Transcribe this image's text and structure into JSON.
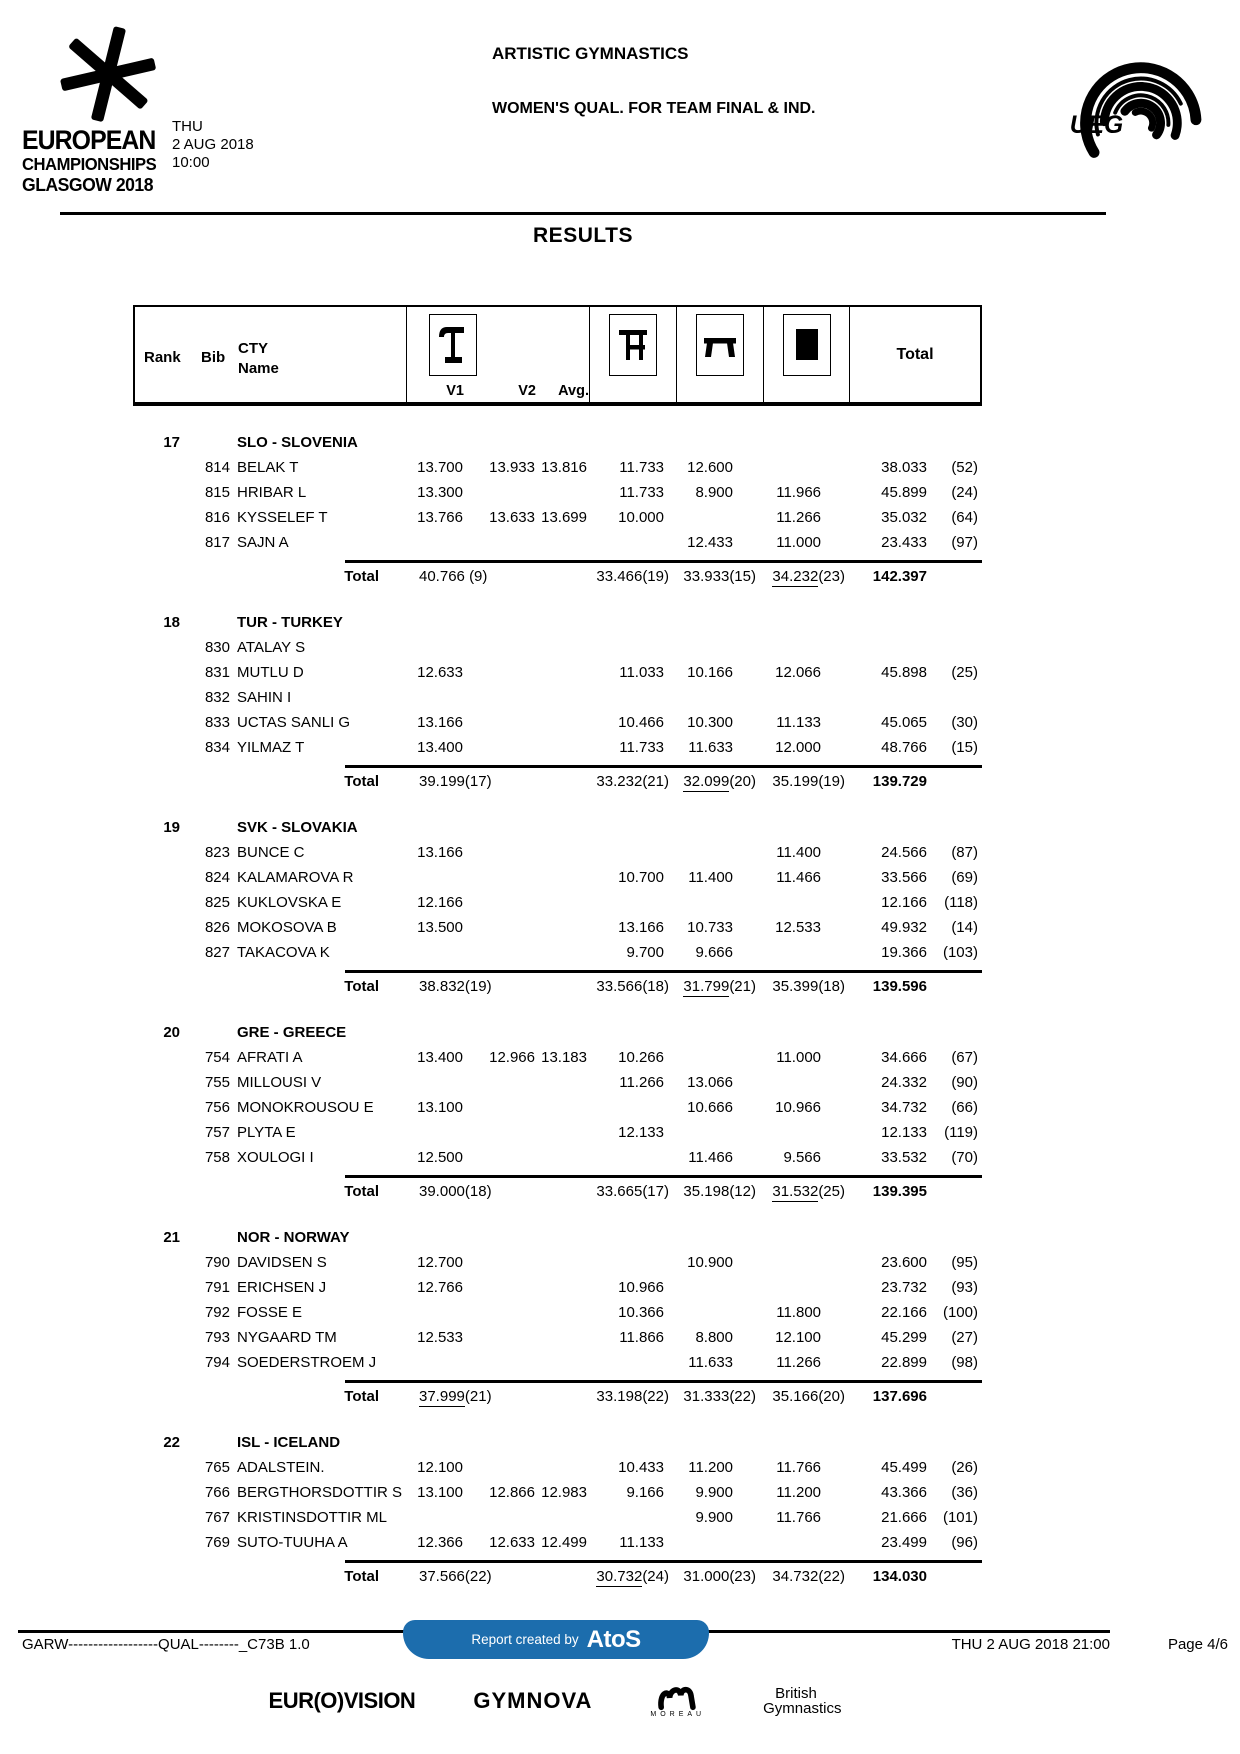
{
  "header": {
    "logo": {
      "line1": "EUROPEAN",
      "line2": "CHAMPIONSHIPS",
      "line3": "GLASGOW 2018"
    },
    "session": {
      "day": "THU",
      "date": "2 AUG 2018",
      "time": "10:00"
    },
    "title": "ARTISTIC GYMNASTICS",
    "subtitle": "WOMEN'S QUAL. FOR TEAM FINAL & IND.",
    "federation": "UEG",
    "results_title": "RESULTS"
  },
  "table": {
    "columns": {
      "rank": "Rank",
      "bib": "Bib",
      "cty": "CTY",
      "name": "Name",
      "v1": "V1",
      "v2": "V2",
      "avg": "Avg.",
      "total": "Total",
      "total_label": "Total"
    },
    "apparatus": [
      "vault",
      "uneven-bars",
      "balance-beam",
      "floor"
    ]
  },
  "teams": [
    {
      "rank": "17",
      "code": "SLO - SLOVENIA",
      "gymnasts": [
        {
          "bib": "814",
          "name": "BELAK T",
          "v1": "13.700",
          "v2": "13.933",
          "avg": "13.816",
          "ub": "11.733",
          "bb": "12.600",
          "fx": "",
          "total": "38.033",
          "rank": "(52)"
        },
        {
          "bib": "815",
          "name": "HRIBAR L",
          "v1": "13.300",
          "v2": "",
          "avg": "",
          "ub": "11.733",
          "bb": "8.900",
          "fx": "11.966",
          "total": "45.899",
          "rank": "(24)"
        },
        {
          "bib": "816",
          "name": "KYSSELEF T",
          "v1": "13.766",
          "v2": "13.633",
          "avg": "13.699",
          "ub": "10.000",
          "bb": "",
          "fx": "11.266",
          "total": "35.032",
          "rank": "(64)"
        },
        {
          "bib": "817",
          "name": "SAJN A",
          "v1": "",
          "v2": "",
          "avg": "",
          "ub": "",
          "bb": "12.433",
          "fx": "11.000",
          "total": "23.433",
          "rank": "(97)"
        }
      ],
      "totals": {
        "vault": {
          "score": "40.766",
          "rank": "(9)",
          "underline": false,
          "spaced": true
        },
        "ub": {
          "score": "33.466",
          "rank": "(19)",
          "underline": false,
          "spaced": false
        },
        "bb": {
          "score": "33.933",
          "rank": "(15)",
          "underline": false,
          "spaced": false
        },
        "fx": {
          "score": "34.232",
          "rank": "(23)",
          "underline": true,
          "spaced": false
        },
        "overall": "142.397"
      }
    },
    {
      "rank": "18",
      "code": "TUR - TURKEY",
      "gymnasts": [
        {
          "bib": "830",
          "name": "ATALAY S",
          "v1": "",
          "v2": "",
          "avg": "",
          "ub": "",
          "bb": "",
          "fx": "",
          "total": "",
          "rank": ""
        },
        {
          "bib": "831",
          "name": "MUTLU D",
          "v1": "12.633",
          "v2": "",
          "avg": "",
          "ub": "11.033",
          "bb": "10.166",
          "fx": "12.066",
          "total": "45.898",
          "rank": "(25)"
        },
        {
          "bib": "832",
          "name": "SAHIN I",
          "v1": "",
          "v2": "",
          "avg": "",
          "ub": "",
          "bb": "",
          "fx": "",
          "total": "",
          "rank": ""
        },
        {
          "bib": "833",
          "name": "UCTAS SANLI G",
          "v1": "13.166",
          "v2": "",
          "avg": "",
          "ub": "10.466",
          "bb": "10.300",
          "fx": "11.133",
          "total": "45.065",
          "rank": "(30)"
        },
        {
          "bib": "834",
          "name": "YILMAZ T",
          "v1": "13.400",
          "v2": "",
          "avg": "",
          "ub": "11.733",
          "bb": "11.633",
          "fx": "12.000",
          "total": "48.766",
          "rank": "(15)"
        }
      ],
      "totals": {
        "vault": {
          "score": "39.199",
          "rank": "(17)",
          "underline": false,
          "spaced": false
        },
        "ub": {
          "score": "33.232",
          "rank": "(21)",
          "underline": false,
          "spaced": false
        },
        "bb": {
          "score": "32.099",
          "rank": "(20)",
          "underline": true,
          "spaced": false
        },
        "fx": {
          "score": "35.199",
          "rank": "(19)",
          "underline": false,
          "spaced": false
        },
        "overall": "139.729"
      }
    },
    {
      "rank": "19",
      "code": "SVK - SLOVAKIA",
      "gymnasts": [
        {
          "bib": "823",
          "name": "BUNCE C",
          "v1": "13.166",
          "v2": "",
          "avg": "",
          "ub": "",
          "bb": "",
          "fx": "11.400",
          "total": "24.566",
          "rank": "(87)"
        },
        {
          "bib": "824",
          "name": "KALAMAROVA R",
          "v1": "",
          "v2": "",
          "avg": "",
          "ub": "10.700",
          "bb": "11.400",
          "fx": "11.466",
          "total": "33.566",
          "rank": "(69)"
        },
        {
          "bib": "825",
          "name": "KUKLOVSKA E",
          "v1": "12.166",
          "v2": "",
          "avg": "",
          "ub": "",
          "bb": "",
          "fx": "",
          "total": "12.166",
          "rank": "(118)"
        },
        {
          "bib": "826",
          "name": "MOKOSOVA B",
          "v1": "13.500",
          "v2": "",
          "avg": "",
          "ub": "13.166",
          "bb": "10.733",
          "fx": "12.533",
          "total": "49.932",
          "rank": "(14)"
        },
        {
          "bib": "827",
          "name": "TAKACOVA K",
          "v1": "",
          "v2": "",
          "avg": "",
          "ub": "9.700",
          "bb": "9.666",
          "fx": "",
          "total": "19.366",
          "rank": "(103)"
        }
      ],
      "totals": {
        "vault": {
          "score": "38.832",
          "rank": "(19)",
          "underline": false,
          "spaced": false
        },
        "ub": {
          "score": "33.566",
          "rank": "(18)",
          "underline": false,
          "spaced": false
        },
        "bb": {
          "score": "31.799",
          "rank": "(21)",
          "underline": true,
          "spaced": false
        },
        "fx": {
          "score": "35.399",
          "rank": "(18)",
          "underline": false,
          "spaced": false
        },
        "overall": "139.596"
      }
    },
    {
      "rank": "20",
      "code": "GRE - GREECE",
      "gymnasts": [
        {
          "bib": "754",
          "name": "AFRATI A",
          "v1": "13.400",
          "v2": "12.966",
          "avg": "13.183",
          "ub": "10.266",
          "bb": "",
          "fx": "11.000",
          "total": "34.666",
          "rank": "(67)"
        },
        {
          "bib": "755",
          "name": "MILLOUSI V",
          "v1": "",
          "v2": "",
          "avg": "",
          "ub": "11.266",
          "bb": "13.066",
          "fx": "",
          "total": "24.332",
          "rank": "(90)"
        },
        {
          "bib": "756",
          "name": "MONOKROUSOU E",
          "v1": "13.100",
          "v2": "",
          "avg": "",
          "ub": "",
          "bb": "10.666",
          "fx": "10.966",
          "total": "34.732",
          "rank": "(66)"
        },
        {
          "bib": "757",
          "name": "PLYTA E",
          "v1": "",
          "v2": "",
          "avg": "",
          "ub": "12.133",
          "bb": "",
          "fx": "",
          "total": "12.133",
          "rank": "(119)"
        },
        {
          "bib": "758",
          "name": "XOULOGI I",
          "v1": "12.500",
          "v2": "",
          "avg": "",
          "ub": "",
          "bb": "11.466",
          "fx": "9.566",
          "total": "33.532",
          "rank": "(70)"
        }
      ],
      "totals": {
        "vault": {
          "score": "39.000",
          "rank": "(18)",
          "underline": false,
          "spaced": false
        },
        "ub": {
          "score": "33.665",
          "rank": "(17)",
          "underline": false,
          "spaced": false
        },
        "bb": {
          "score": "35.198",
          "rank": "(12)",
          "underline": false,
          "spaced": false
        },
        "fx": {
          "score": "31.532",
          "rank": "(25)",
          "underline": true,
          "spaced": false
        },
        "overall": "139.395"
      }
    },
    {
      "rank": "21",
      "code": "NOR - NORWAY",
      "gymnasts": [
        {
          "bib": "790",
          "name": "DAVIDSEN S",
          "v1": "12.700",
          "v2": "",
          "avg": "",
          "ub": "",
          "bb": "10.900",
          "fx": "",
          "total": "23.600",
          "rank": "(95)"
        },
        {
          "bib": "791",
          "name": "ERICHSEN J",
          "v1": "12.766",
          "v2": "",
          "avg": "",
          "ub": "10.966",
          "bb": "",
          "fx": "",
          "total": "23.732",
          "rank": "(93)"
        },
        {
          "bib": "792",
          "name": "FOSSE E",
          "v1": "",
          "v2": "",
          "avg": "",
          "ub": "10.366",
          "bb": "",
          "fx": "11.800",
          "total": "22.166",
          "rank": "(100)"
        },
        {
          "bib": "793",
          "name": "NYGAARD TM",
          "v1": "12.533",
          "v2": "",
          "avg": "",
          "ub": "11.866",
          "bb": "8.800",
          "fx": "12.100",
          "total": "45.299",
          "rank": "(27)"
        },
        {
          "bib": "794",
          "name": "SOEDERSTROEM J",
          "v1": "",
          "v2": "",
          "avg": "",
          "ub": "",
          "bb": "11.633",
          "fx": "11.266",
          "total": "22.899",
          "rank": "(98)"
        }
      ],
      "totals": {
        "vault": {
          "score": "37.999",
          "rank": "(21)",
          "underline": true,
          "spaced": false
        },
        "ub": {
          "score": "33.198",
          "rank": "(22)",
          "underline": false,
          "spaced": false
        },
        "bb": {
          "score": "31.333",
          "rank": "(22)",
          "underline": false,
          "spaced": false
        },
        "fx": {
          "score": "35.166",
          "rank": "(20)",
          "underline": false,
          "spaced": false
        },
        "overall": "137.696"
      }
    },
    {
      "rank": "22",
      "code": "ISL - ICELAND",
      "gymnasts": [
        {
          "bib": "765",
          "name": "ADALSTEIN.",
          "v1": "12.100",
          "v2": "",
          "avg": "",
          "ub": "10.433",
          "bb": "11.200",
          "fx": "11.766",
          "total": "45.499",
          "rank": "(26)"
        },
        {
          "bib": "766",
          "name": "BERGTHORSDOTTIR S",
          "v1": "13.100",
          "v2": "12.866",
          "avg": "12.983",
          "ub": "9.166",
          "bb": "9.900",
          "fx": "11.200",
          "total": "43.366",
          "rank": "(36)"
        },
        {
          "bib": "767",
          "name": "KRISTINSDOTTIR ML",
          "v1": "",
          "v2": "",
          "avg": "",
          "ub": "",
          "bb": "9.900",
          "fx": "11.766",
          "total": "21.666",
          "rank": "(101)"
        },
        {
          "bib": "769",
          "name": "SUTO-TUUHA A",
          "v1": "12.366",
          "v2": "12.633",
          "avg": "12.499",
          "ub": "11.133",
          "bb": "",
          "fx": "",
          "total": "23.499",
          "rank": "(96)"
        }
      ],
      "totals": {
        "vault": {
          "score": "37.566",
          "rank": "(22)",
          "underline": false,
          "spaced": false
        },
        "ub": {
          "score": "30.732",
          "rank": "(24)",
          "underline": true,
          "spaced": false
        },
        "bb": {
          "score": "31.000",
          "rank": "(23)",
          "underline": false,
          "spaced": false
        },
        "fx": {
          "score": "34.732",
          "rank": "(22)",
          "underline": false,
          "spaced": false
        },
        "overall": "134.030"
      }
    }
  ],
  "footer": {
    "left": "GARW------------------QUAL--------_C73B 1.0",
    "report_text": "Report created by",
    "report_brand": "AtoS",
    "datetime": "THU 2 AUG 2018 21:00",
    "page": "Page 4/6",
    "sponsors": {
      "eurovision": "EUR(O)VISION",
      "gymnova": "GYMNOVA",
      "moreau_caption": "MOREAU",
      "bg_line1": "British",
      "bg_line2": "Gymnastics"
    }
  }
}
